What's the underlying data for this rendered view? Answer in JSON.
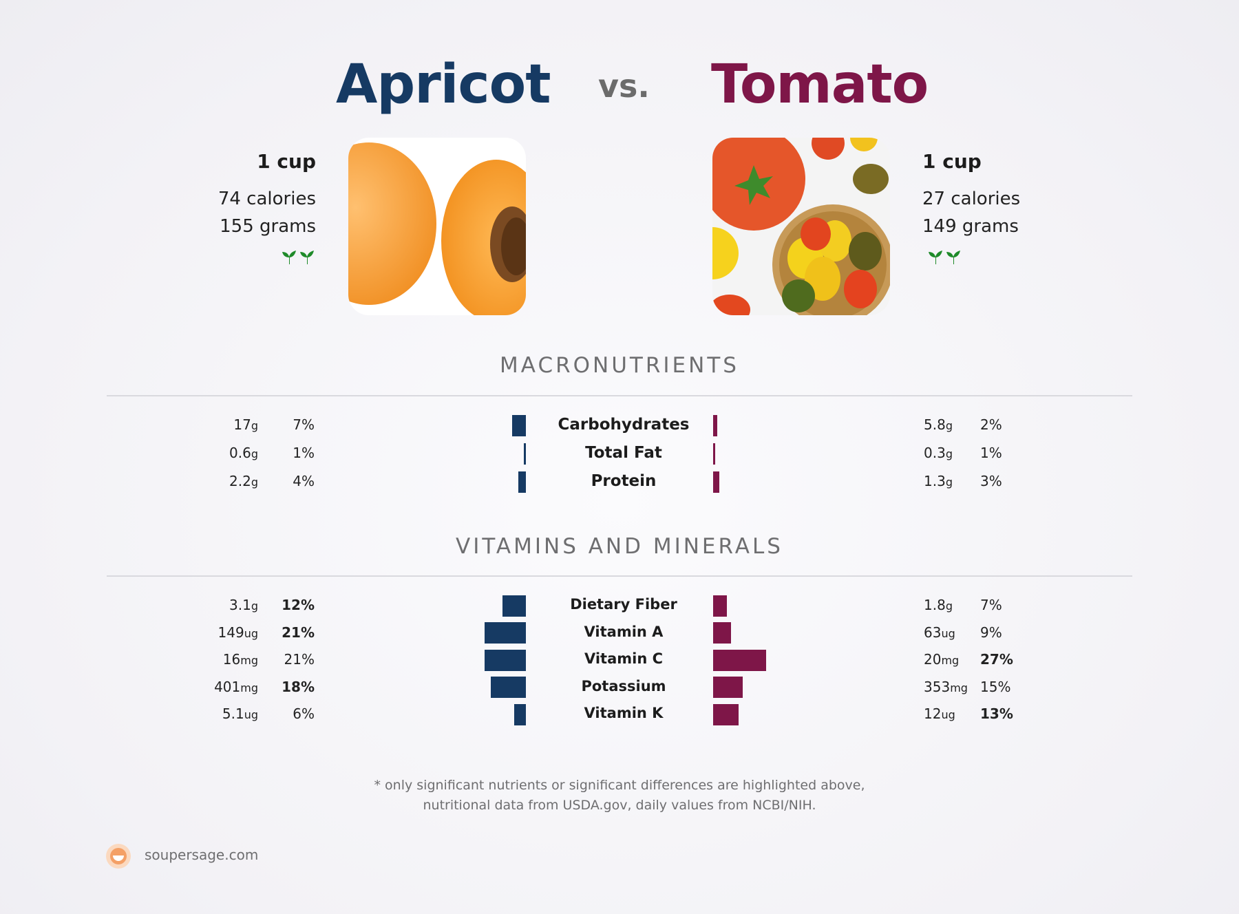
{
  "header": {
    "left_food": "Apricot",
    "vs": "vs.",
    "right_food": "Tomato"
  },
  "left": {
    "serving": "1 cup",
    "calories": "74 calories",
    "grams": "155 grams",
    "image_icon": "apricot-photo",
    "badge_icon": "sprout-icon"
  },
  "right": {
    "serving": "1 cup",
    "calories": "27 calories",
    "grams": "149 grams",
    "image_icon": "tomato-photo",
    "badge_icon": "sprout-icon"
  },
  "colors": {
    "left": "#163a63",
    "right": "#7e1648"
  },
  "sections": {
    "macros": "MACRONUTRIENTS",
    "vitamins": "VITAMINS AND MINERALS"
  },
  "chart_data": [
    {
      "type": "bar",
      "title": "MACRONUTRIENTS",
      "categories": [
        "Carbohydrates",
        "Total Fat",
        "Protein"
      ],
      "series": [
        {
          "name": "Apricot",
          "amounts": [
            "17",
            "0.6",
            "2.2"
          ],
          "units": [
            "g",
            "g",
            "g"
          ],
          "percent_labels": [
            "7%",
            "1%",
            "4%"
          ],
          "values": [
            7,
            1,
            4
          ],
          "bold": [
            false,
            false,
            false
          ]
        },
        {
          "name": "Tomato",
          "amounts": [
            "5.8",
            "0.3",
            "1.3"
          ],
          "units": [
            "g",
            "g",
            "g"
          ],
          "percent_labels": [
            "2%",
            "1%",
            "3%"
          ],
          "values": [
            2,
            1,
            3
          ],
          "bold": [
            false,
            false,
            false
          ]
        }
      ]
    },
    {
      "type": "bar",
      "title": "VITAMINS AND MINERALS",
      "categories": [
        "Dietary Fiber",
        "Vitamin A",
        "Vitamin C",
        "Potassium",
        "Vitamin K"
      ],
      "series": [
        {
          "name": "Apricot",
          "amounts": [
            "3.1",
            "149",
            "16",
            "401",
            "5.1"
          ],
          "units": [
            "g",
            "ug",
            "mg",
            "mg",
            "ug"
          ],
          "percent_labels": [
            "12%",
            "21%",
            "21%",
            "18%",
            "6%"
          ],
          "values": [
            12,
            21,
            21,
            18,
            6
          ],
          "bold": [
            true,
            true,
            false,
            true,
            false
          ]
        },
        {
          "name": "Tomato",
          "amounts": [
            "1.8",
            "63",
            "20",
            "353",
            "12"
          ],
          "units": [
            "g",
            "ug",
            "mg",
            "mg",
            "ug"
          ],
          "percent_labels": [
            "7%",
            "9%",
            "27%",
            "15%",
            "13%"
          ],
          "values": [
            7,
            9,
            27,
            15,
            13
          ],
          "bold": [
            false,
            false,
            true,
            false,
            true
          ]
        }
      ]
    }
  ],
  "footnote": {
    "line1": "* only significant nutrients or significant differences are highlighted above,",
    "line2": "nutritional data from USDA.gov, daily values from NCBI/NIH."
  },
  "brand": {
    "name": "soupersage.com",
    "icon": "soupersage-logo-icon"
  }
}
